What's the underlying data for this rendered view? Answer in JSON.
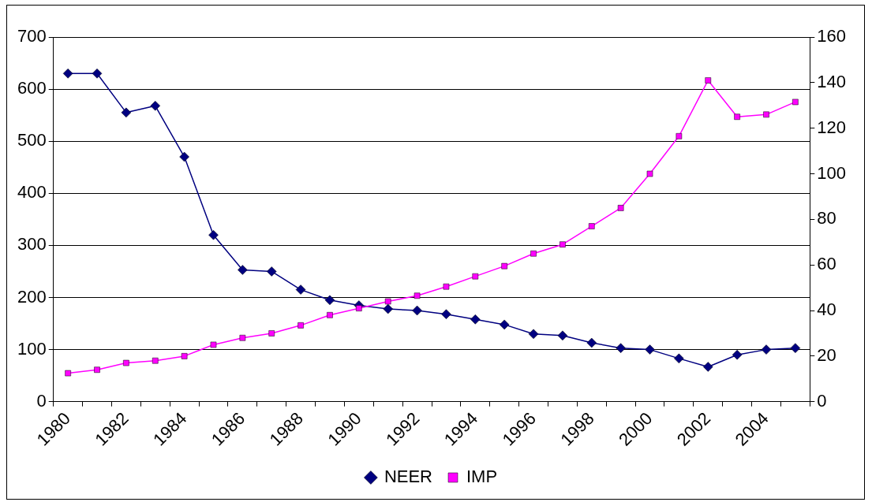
{
  "chart_data": {
    "type": "line",
    "categories": [
      "1980",
      null,
      "1982",
      null,
      "1984",
      null,
      "1986",
      null,
      "1988",
      null,
      "1990",
      null,
      "1992",
      null,
      "1994",
      null,
      "1996",
      null,
      "1998",
      null,
      "2000",
      null,
      "2002",
      null,
      "2004",
      null
    ],
    "series": [
      {
        "name": "NEER",
        "color": "#000080",
        "marker": "diamond",
        "values": [
          630,
          630,
          555,
          568,
          470,
          320,
          253,
          250,
          215,
          195,
          185,
          178,
          175,
          168,
          158,
          148,
          130,
          127,
          113,
          103,
          100,
          83,
          67,
          90,
          100,
          103
        ]
      },
      {
        "name": "IMP",
        "color": "#ff00ff",
        "marker": "square",
        "axis": "y2",
        "values": [
          12.5,
          14,
          17,
          18,
          20,
          25,
          28,
          30,
          33.5,
          38,
          41,
          44,
          46.5,
          50.5,
          55,
          59.5,
          65,
          69,
          77,
          85,
          100,
          116.5,
          141,
          125,
          126,
          131.5
        ]
      }
    ],
    "ylim": [
      0,
      700
    ],
    "yticks": [
      0,
      100,
      200,
      300,
      400,
      500,
      600,
      700
    ],
    "y2lim": [
      0,
      160
    ],
    "y2ticks": [
      0,
      20,
      40,
      60,
      80,
      100,
      120,
      140,
      160
    ],
    "grid": "y",
    "legend": "bottom",
    "line_style": "solid"
  }
}
